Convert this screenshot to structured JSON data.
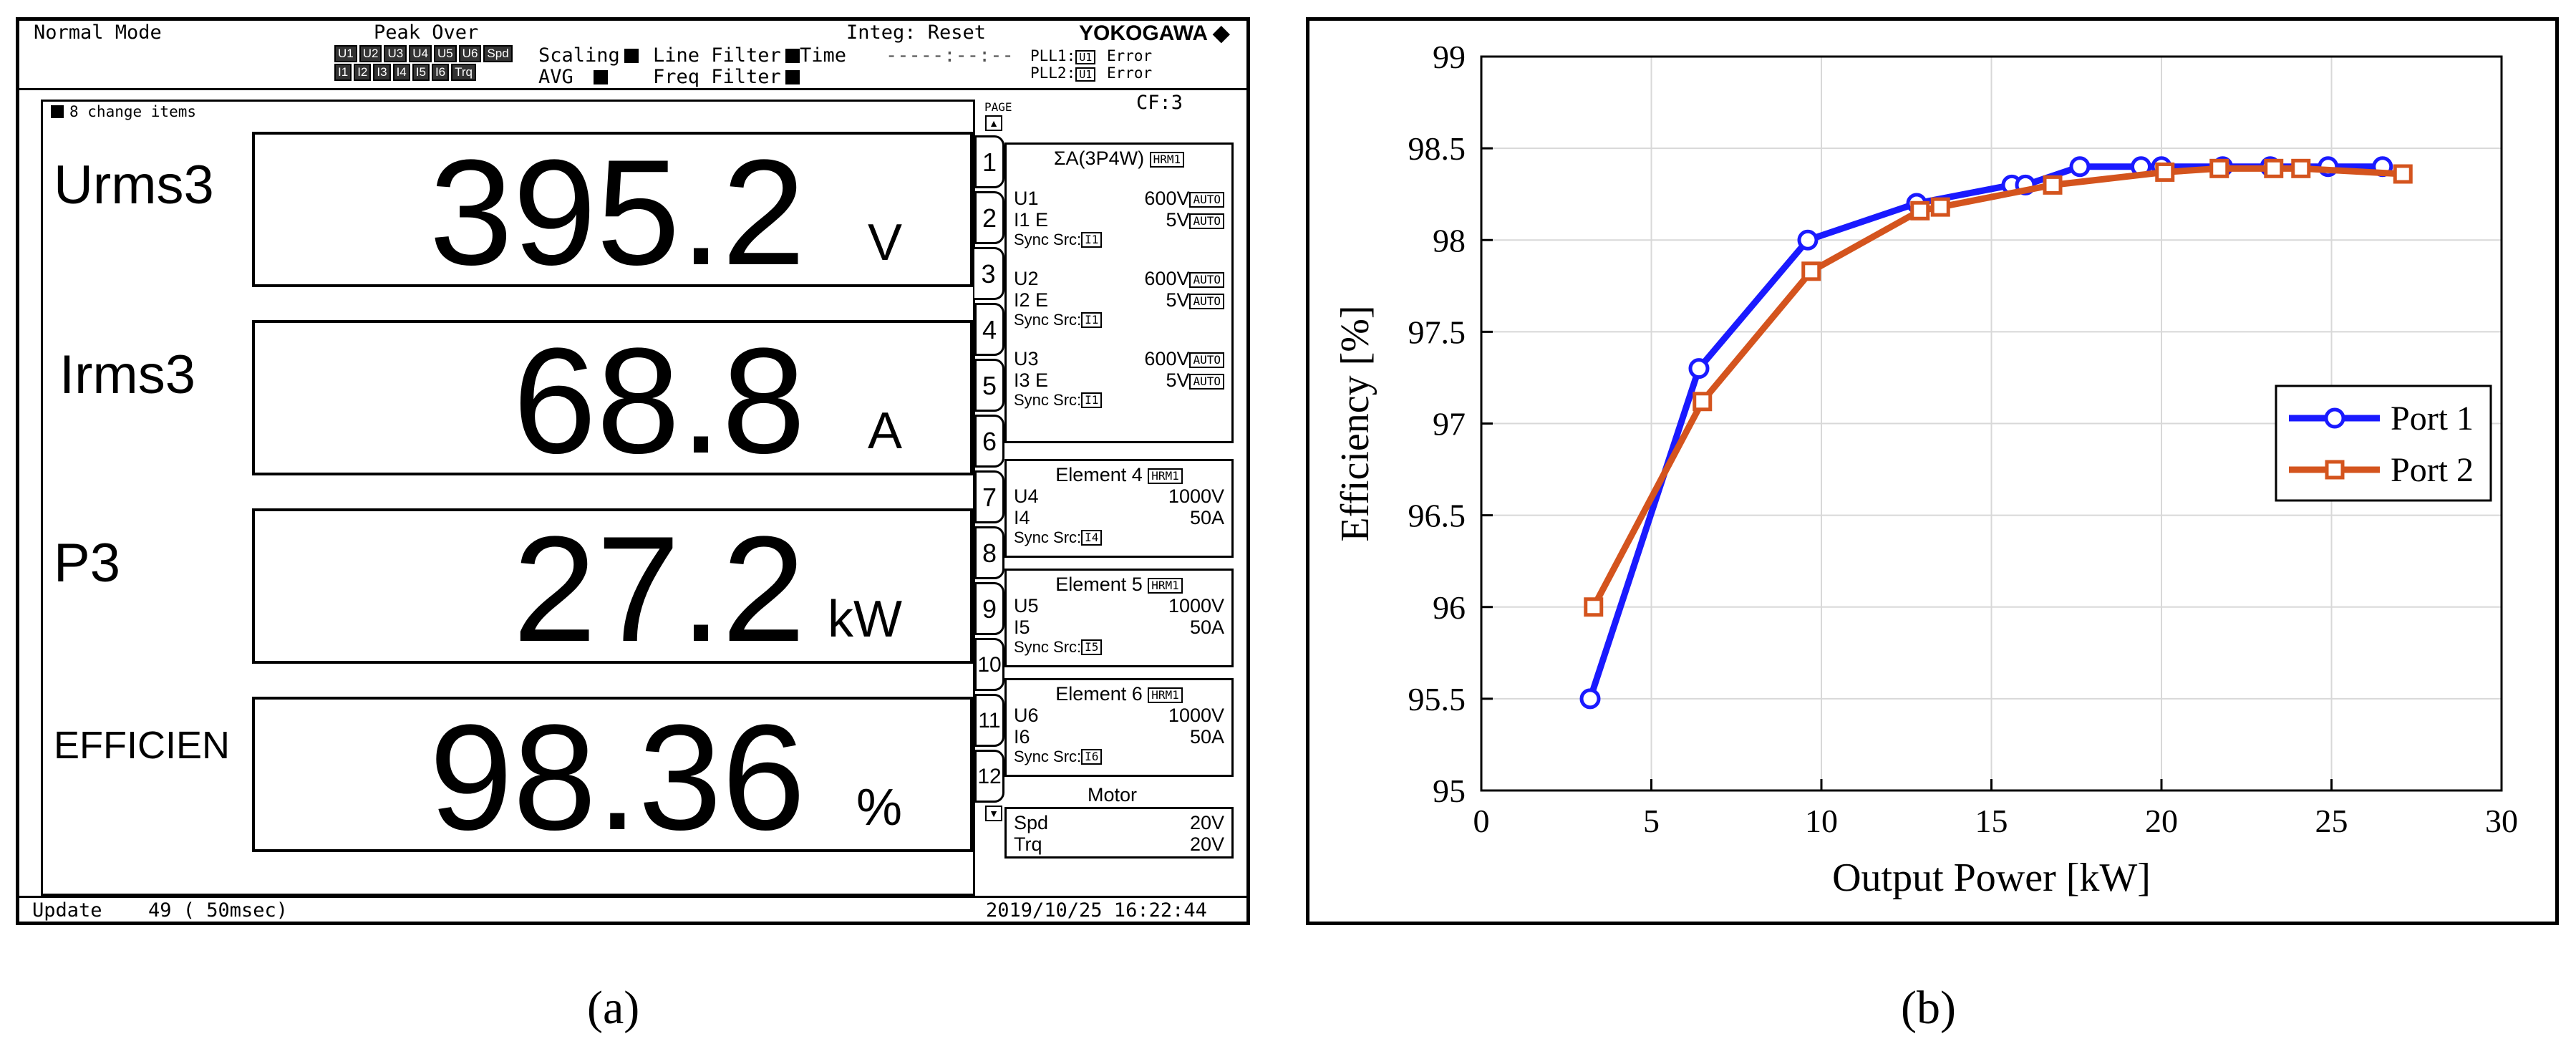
{
  "analyzer": {
    "mode": "Normal Mode",
    "peak_over_label": "Peak Over",
    "peak_chips_top": [
      "U1",
      "U2",
      "U3",
      "U4",
      "U5",
      "U6",
      "Spd"
    ],
    "peak_chips_bottom": [
      "I1",
      "I2",
      "I3",
      "I4",
      "I5",
      "I6",
      "Trq"
    ],
    "scaling_label": "Scaling",
    "avg_label": "AVG",
    "line_filter_label": "Line Filter",
    "freq_filter_label": "Freq Filter",
    "integ_label": "Integ: Reset",
    "time_label": "Time",
    "time_value": "-----:--:--",
    "brand": "YOKOGAWA",
    "pll1_label": "PLL1:",
    "pll1_src": "U1",
    "pll1_status": "Error",
    "pll2_label": "PLL2:",
    "pll2_src": "U1",
    "pll2_status": "Error",
    "change_items": "8 change items",
    "cf": "CF:3",
    "page_label": "PAGE",
    "items": [
      {
        "name": "Urms3",
        "value": "395.2",
        "unit": "V"
      },
      {
        "name": "Irms3",
        "value": "68.8",
        "unit": "A"
      },
      {
        "name": "P3",
        "value": "27.2",
        "unit": "kW"
      },
      {
        "name": "EFFICIEN",
        "value": "98.36",
        "unit": "%"
      }
    ],
    "tabs": [
      "1",
      "2",
      "3",
      "4",
      "5",
      "6",
      "7",
      "8",
      "9",
      "10",
      "11",
      "12"
    ],
    "sigma_group": {
      "title": "ΣA(3P4W)",
      "badge": "HRM1",
      "channels": [
        {
          "u_label": "U1",
          "u_range": "600V",
          "i_label": "I1 E",
          "i_range": "5V",
          "auto": "AUTO",
          "sync": "Sync Src:",
          "sync_src": "I1"
        },
        {
          "u_label": "U2",
          "u_range": "600V",
          "i_label": "I2 E",
          "i_range": "5V",
          "auto": "AUTO",
          "sync": "Sync Src:",
          "sync_src": "I1"
        },
        {
          "u_label": "U3",
          "u_range": "600V",
          "i_label": "I3 E",
          "i_range": "5V",
          "auto": "AUTO",
          "sync": "Sync Src:",
          "sync_src": "I1"
        }
      ]
    },
    "elements": [
      {
        "title": "Element 4",
        "badge": "HRM1",
        "u_label": "U4",
        "u_range": "1000V",
        "i_label": "I4",
        "i_range": "50A",
        "sync": "Sync Src:",
        "sync_src": "I4"
      },
      {
        "title": "Element 5",
        "badge": "HRM1",
        "u_label": "U5",
        "u_range": "1000V",
        "i_label": "I5",
        "i_range": "50A",
        "sync": "Sync Src:",
        "sync_src": "I5"
      },
      {
        "title": "Element 6",
        "badge": "HRM1",
        "u_label": "U6",
        "u_range": "1000V",
        "i_label": "I6",
        "i_range": "50A",
        "sync": "Sync Src:",
        "sync_src": "I6"
      }
    ],
    "motor": {
      "title": "Motor",
      "spd_label": "Spd",
      "spd_value": "20V",
      "trq_label": "Trq",
      "trq_value": "20V"
    },
    "update_label": "Update",
    "update_value": "49 ( 50msec)",
    "datetime": "2019/10/25 16:22:44"
  },
  "captions": {
    "a": "(a)",
    "b": "(b)"
  },
  "chart_data": {
    "type": "line",
    "title": "",
    "xlabel": "Output Power [kW]",
    "ylabel": "Efficiency [%]",
    "xlim": [
      0,
      30
    ],
    "ylim": [
      95,
      99
    ],
    "xticks": [
      "0",
      "5",
      "10",
      "15",
      "20",
      "25",
      "30"
    ],
    "yticks": [
      "95",
      "95.5",
      "96",
      "96.5",
      "97",
      "97.5",
      "98",
      "98.5",
      "99"
    ],
    "grid": true,
    "legend_position": "center-right",
    "series": [
      {
        "name": "Port 1",
        "color": "#1a1aff",
        "marker": "circle",
        "x": [
          3.2,
          6.4,
          9.6,
          12.8,
          15.6,
          16.0,
          17.6,
          19.4,
          20.0,
          21.8,
          23.2,
          24.9,
          26.5
        ],
        "y": [
          95.5,
          97.3,
          98.0,
          98.2,
          98.3,
          98.3,
          98.4,
          98.4,
          98.4,
          98.4,
          98.4,
          98.4,
          98.4
        ]
      },
      {
        "name": "Port 2",
        "color": "#d4541e",
        "marker": "square",
        "x": [
          3.3,
          6.5,
          9.7,
          12.9,
          13.5,
          16.8,
          20.1,
          21.7,
          23.3,
          24.1,
          27.1
        ],
        "y": [
          96.0,
          97.12,
          97.83,
          98.16,
          98.18,
          98.3,
          98.37,
          98.39,
          98.39,
          98.39,
          98.36
        ]
      }
    ]
  }
}
